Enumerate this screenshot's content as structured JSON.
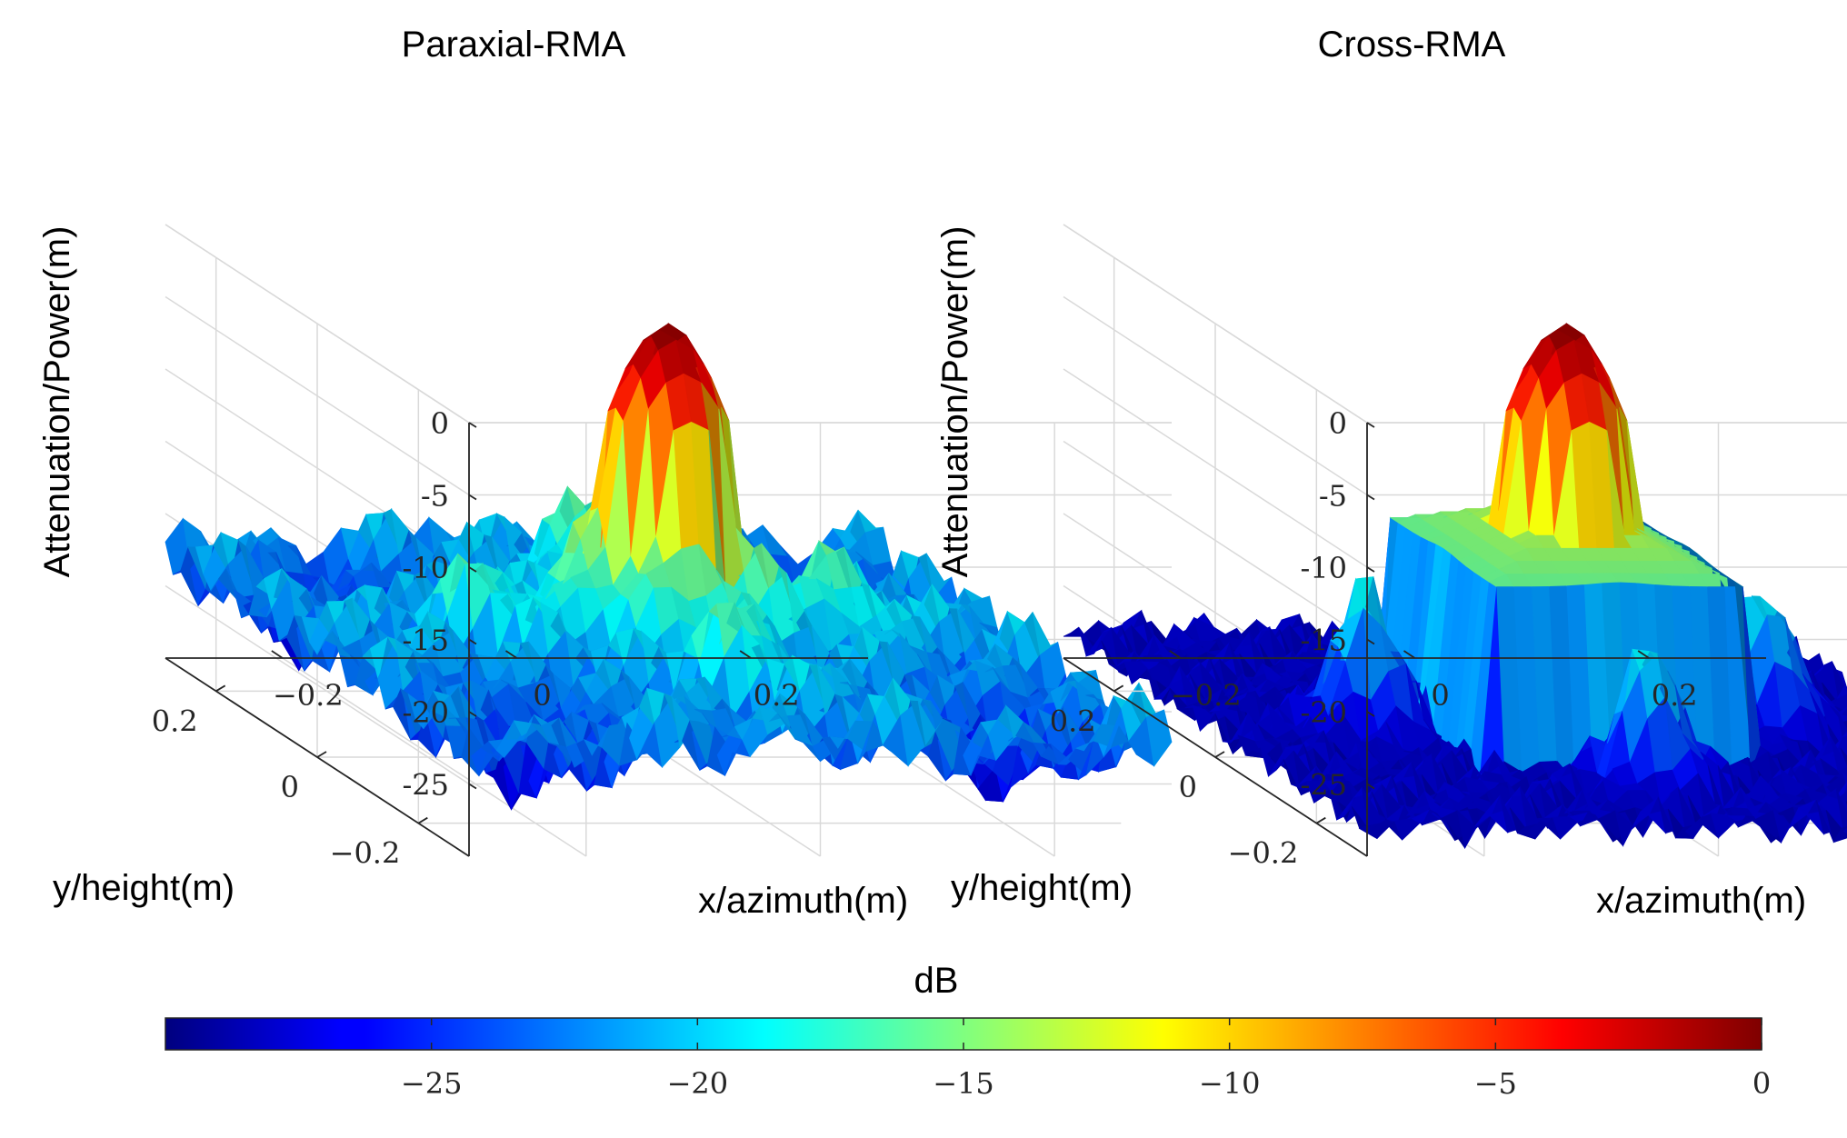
{
  "chart_data": [
    {
      "type": "surface",
      "title": "Paraxial-RMA",
      "xlabel": "x/azimuth(m)",
      "ylabel": "y/height(m)",
      "zlabel": "Attenuation/Power(m)",
      "xlim": [
        -0.3,
        0.3
      ],
      "ylim": [
        -0.3,
        0.3
      ],
      "zlim": [
        -30,
        0
      ],
      "xticks": [
        -0.2,
        0,
        0.2
      ],
      "xtick_labels": [
        "−0.2",
        "0",
        "0.2"
      ],
      "yticks": [
        -0.2,
        0,
        0.2
      ],
      "ytick_labels": [
        "−0.2",
        "0",
        "0.2"
      ],
      "zticks": [
        0,
        -5,
        -10,
        -15,
        -20,
        -25
      ],
      "ztick_labels": [
        "0",
        "-5",
        "-10",
        "-15",
        "-20",
        "-25"
      ],
      "grid": true,
      "peak": {
        "x": 0,
        "y": 0,
        "z": 0
      },
      "mainlobe_halfwidth_m": 0.05,
      "background_level_db": -22,
      "sidelobe_level_db": -14
    },
    {
      "type": "surface",
      "title": "Cross-RMA",
      "xlabel": "x/azimuth(m)",
      "ylabel": "y/height(m)",
      "zlabel": "Attenuation/Power(m)",
      "xlim": [
        -0.3,
        0.3
      ],
      "ylim": [
        -0.3,
        0.3
      ],
      "zlim": [
        -30,
        0
      ],
      "xticks": [
        -0.2,
        0,
        0.2
      ],
      "xtick_labels": [
        "−0.2",
        "0",
        "0.2"
      ],
      "yticks": [
        -0.2,
        0,
        0.2
      ],
      "ytick_labels": [
        "−0.2",
        "0",
        "0.2"
      ],
      "zticks": [
        0,
        -5,
        -10,
        -15,
        -20,
        -25
      ],
      "ztick_labels": [
        "0",
        "-5",
        "-10",
        "-15",
        "-20",
        "-25"
      ],
      "grid": true,
      "peak": {
        "x": 0,
        "y": 0,
        "z": 0
      },
      "mainlobe_halfwidth_m": 0.05,
      "background_level_db": -28,
      "sidelobe_level_db": -12
    },
    {
      "type": "colorbar",
      "label": "dB",
      "colormap": "jet",
      "range": [
        -30,
        0
      ],
      "ticks": [
        -25,
        -20,
        -15,
        -10,
        -5,
        0
      ],
      "tick_labels": [
        "−25",
        "−20",
        "−15",
        "−10",
        "−5",
        "0"
      ]
    }
  ]
}
